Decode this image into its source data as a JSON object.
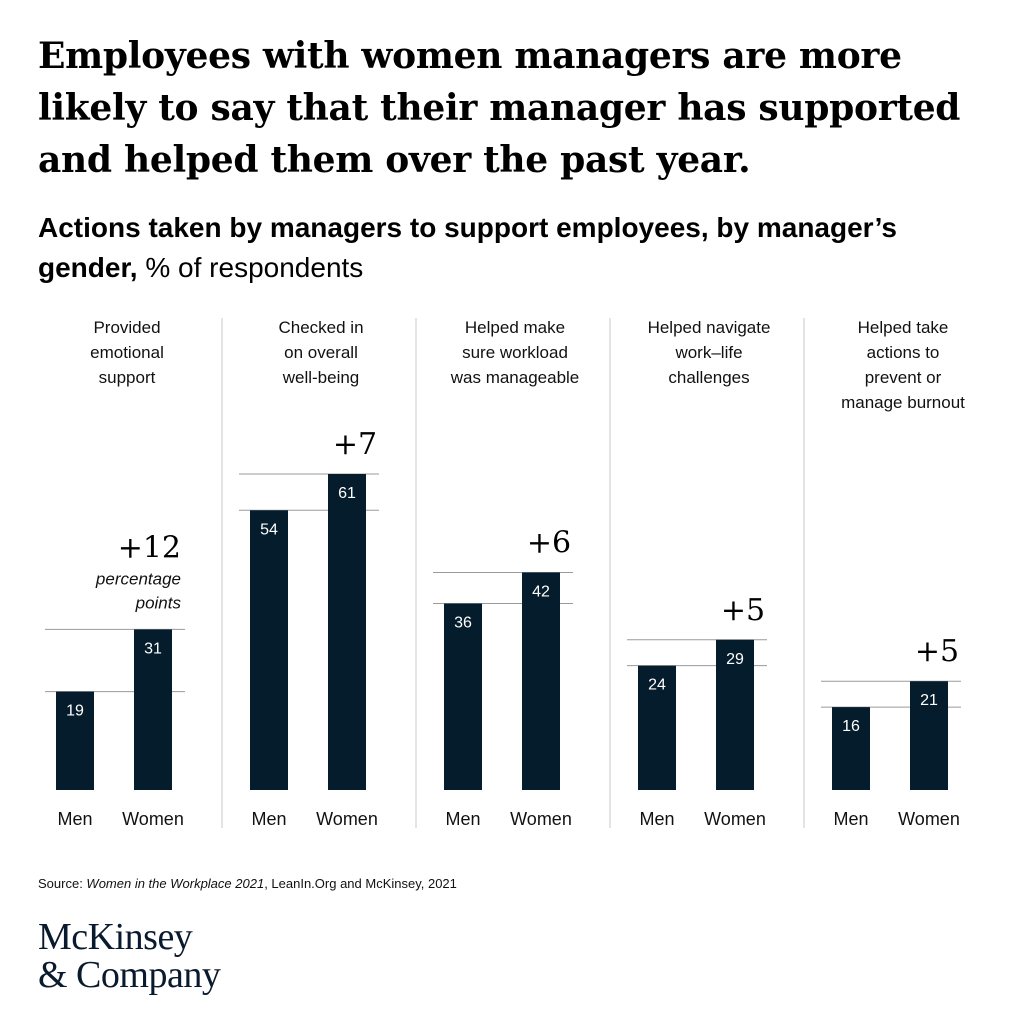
{
  "title": "Employees with women managers are more likely to say that their manager has supported and helped them over the past year.",
  "subtitle_bold": "Actions taken by managers to support employees, by manager’s gender,",
  "subtitle_rest": " % of respondents",
  "chart_data": {
    "type": "bar",
    "unit": "% of respondents",
    "x_labels": [
      "Men",
      "Women"
    ],
    "delta_note": "percentage points",
    "bar_color": "#051c2c",
    "groups": [
      {
        "label": [
          "Provided",
          "emotional",
          "support"
        ],
        "men": 19,
        "women": 31,
        "delta": "+12"
      },
      {
        "label": [
          "Checked in",
          "on overall",
          "well-being"
        ],
        "men": 54,
        "women": 61,
        "delta": "+7"
      },
      {
        "label": [
          "Helped make",
          "sure workload",
          "was manageable"
        ],
        "men": 36,
        "women": 42,
        "delta": "+6"
      },
      {
        "label": [
          "Helped navigate",
          "work–life",
          "challenges"
        ],
        "men": 24,
        "women": 29,
        "delta": "+5"
      },
      {
        "label": [
          "Helped take",
          "actions to",
          "prevent or",
          "manage burnout"
        ],
        "men": 16,
        "women": 21,
        "delta": "+5"
      }
    ]
  },
  "source": {
    "prefix": "Source: ",
    "italic": "Women in the Workplace 2021",
    "suffix": ", LeanIn.Org and McKinsey, 2021"
  },
  "logo": {
    "line1": "McKinsey",
    "line2": "& Company"
  }
}
